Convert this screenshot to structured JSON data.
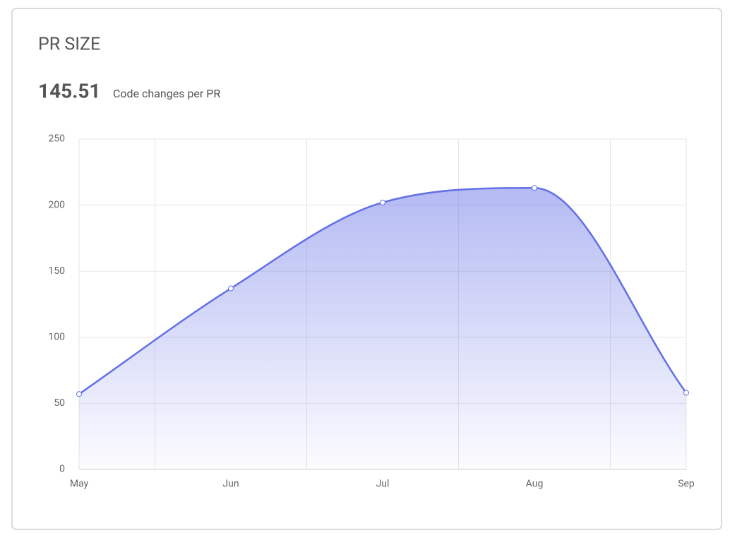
{
  "header": {
    "title": "PR SIZE"
  },
  "metric": {
    "value": 145.51,
    "label": "Code changes per PR"
  },
  "chart_data": {
    "type": "area",
    "categories": [
      "May",
      "Jun",
      "Jul",
      "Aug",
      "Sep"
    ],
    "series": [
      {
        "color": "#6370e6",
        "values": [
          57,
          137,
          202,
          213,
          58
        ]
      }
    ],
    "ylim": [
      0,
      250
    ],
    "yticks": [
      0,
      50,
      100,
      150,
      200,
      250
    ],
    "grid": true
  }
}
